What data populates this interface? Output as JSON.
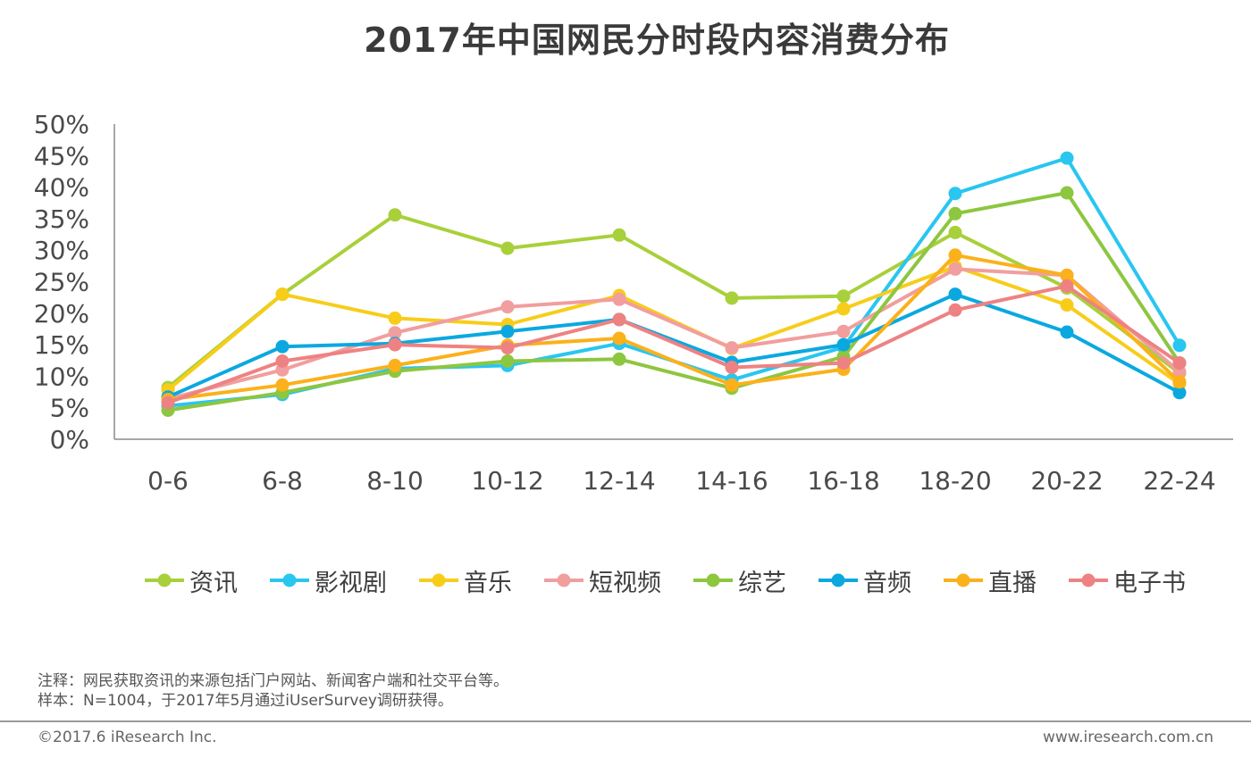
{
  "chart_data": {
    "type": "line",
    "title": "2017年中国网民分时段内容消费分布",
    "xlabel": "",
    "ylabel": "",
    "ylim": [
      0,
      50
    ],
    "y_ticks": [
      "0%",
      "5%",
      "10%",
      "15%",
      "20%",
      "25%",
      "30%",
      "35%",
      "40%",
      "45%",
      "50%"
    ],
    "y_tick_values": [
      0,
      5,
      10,
      15,
      20,
      25,
      30,
      35,
      40,
      45,
      50
    ],
    "categories": [
      "0-6",
      "6-8",
      "8-10",
      "10-12",
      "12-14",
      "14-16",
      "16-18",
      "18-20",
      "20-22",
      "22-24"
    ],
    "grid": false,
    "legend_position": "bottom",
    "series": [
      {
        "name": "资讯",
        "color": "#A8D03B",
        "values": [
          8.2,
          23.0,
          35.6,
          30.3,
          32.4,
          22.4,
          22.7,
          32.8,
          24.0,
          10.5
        ]
      },
      {
        "name": "影视剧",
        "color": "#29C6F0",
        "values": [
          5.3,
          7.1,
          11.2,
          11.7,
          15.2,
          9.4,
          14.6,
          39.0,
          44.6,
          14.9
        ]
      },
      {
        "name": "音乐",
        "color": "#F7CD1A",
        "values": [
          7.8,
          23.0,
          19.2,
          18.2,
          22.8,
          14.4,
          20.7,
          27.4,
          21.3,
          8.8
        ]
      },
      {
        "name": "短视频",
        "color": "#F19E9E",
        "values": [
          6.4,
          11.0,
          16.9,
          21.0,
          22.2,
          14.5,
          17.1,
          27.0,
          26.0,
          10.7
        ]
      },
      {
        "name": "综艺",
        "color": "#8DC63F",
        "values": [
          4.6,
          7.4,
          10.8,
          12.4,
          12.7,
          8.1,
          13.1,
          35.8,
          39.1,
          12.1
        ]
      },
      {
        "name": "音频",
        "color": "#0BA8E0",
        "values": [
          6.7,
          14.7,
          15.2,
          17.1,
          19.0,
          12.2,
          15.0,
          23.0,
          17.0,
          7.4
        ]
      },
      {
        "name": "直播",
        "color": "#FBB11B",
        "values": [
          6.3,
          8.6,
          11.7,
          14.9,
          16.0,
          8.6,
          11.1,
          29.2,
          26.0,
          9.1
        ]
      },
      {
        "name": "电子书",
        "color": "#EE8282",
        "values": [
          5.8,
          12.4,
          15.0,
          14.5,
          19.0,
          11.4,
          12.1,
          20.5,
          24.3,
          12.1
        ]
      }
    ]
  },
  "notes": {
    "line1": "注释：网民获取资讯的来源包括门户网站、新闻客户端和社交平台等。",
    "line2": "样本：N=1004，于2017年5月通过iUserSurvey调研获得。"
  },
  "footer": {
    "copyright": "©2017.6 iResearch Inc.",
    "website": "www.iresearch.com.cn"
  }
}
